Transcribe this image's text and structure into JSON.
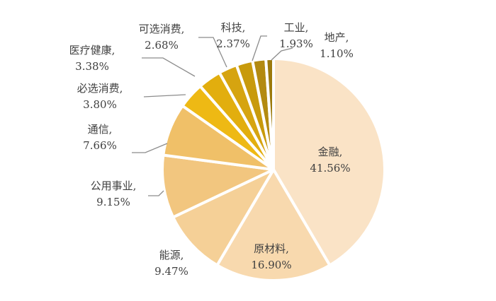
{
  "chart_data": {
    "type": "pie",
    "title": "",
    "start_angle": "12 o'clock",
    "direction": "clockwise",
    "categories": [
      "金融",
      "原材料",
      "能源",
      "公用事业",
      "通信",
      "必选消费",
      "医疗健康",
      "可选消费",
      "科技",
      "工业",
      "地产"
    ],
    "values": [
      41.56,
      16.9,
      9.47,
      9.15,
      7.66,
      3.8,
      3.38,
      2.68,
      2.37,
      1.93,
      1.1
    ],
    "unit": "%",
    "labels": [
      "金融,\n41.56%",
      "原材料,\n16.90%",
      "能源,\n9.47%",
      "公用事业,\n9.15%",
      "通信,\n7.66%",
      "必选消费,\n3.80%",
      "医疗健康,\n3.38%",
      "可选消费,\n2.68%",
      "科技,\n2.37%",
      "工业,\n1.93%",
      "地产,\n1.10%"
    ],
    "colors": [
      "#FAE3C6",
      "#F8D9AE",
      "#F5D097",
      "#F2C67F",
      "#F0C068",
      "#EEB914",
      "#E2AE0E",
      "#D6A410",
      "#C89A0C",
      "#B38A10",
      "#9C7A0C"
    ],
    "legend": "none (category labels with leader lines)"
  },
  "slices": [
    {
      "name": "金融",
      "value_text": "41.56%"
    },
    {
      "name": "原材料",
      "value_text": "16.90%"
    },
    {
      "name": "能源",
      "value_text": "9.47%"
    },
    {
      "name": "公用事业",
      "value_text": "9.15%"
    },
    {
      "name": "通信",
      "value_text": "7.66%"
    },
    {
      "name": "必选消费",
      "value_text": "3.80%"
    },
    {
      "name": "医疗健康",
      "value_text": "3.38%"
    },
    {
      "name": "可选消费",
      "value_text": "2.68%"
    },
    {
      "name": "科技",
      "value_text": "2.37%"
    },
    {
      "name": "工业",
      "value_text": "1.93%"
    },
    {
      "name": "地产",
      "value_text": "1.10%"
    }
  ]
}
